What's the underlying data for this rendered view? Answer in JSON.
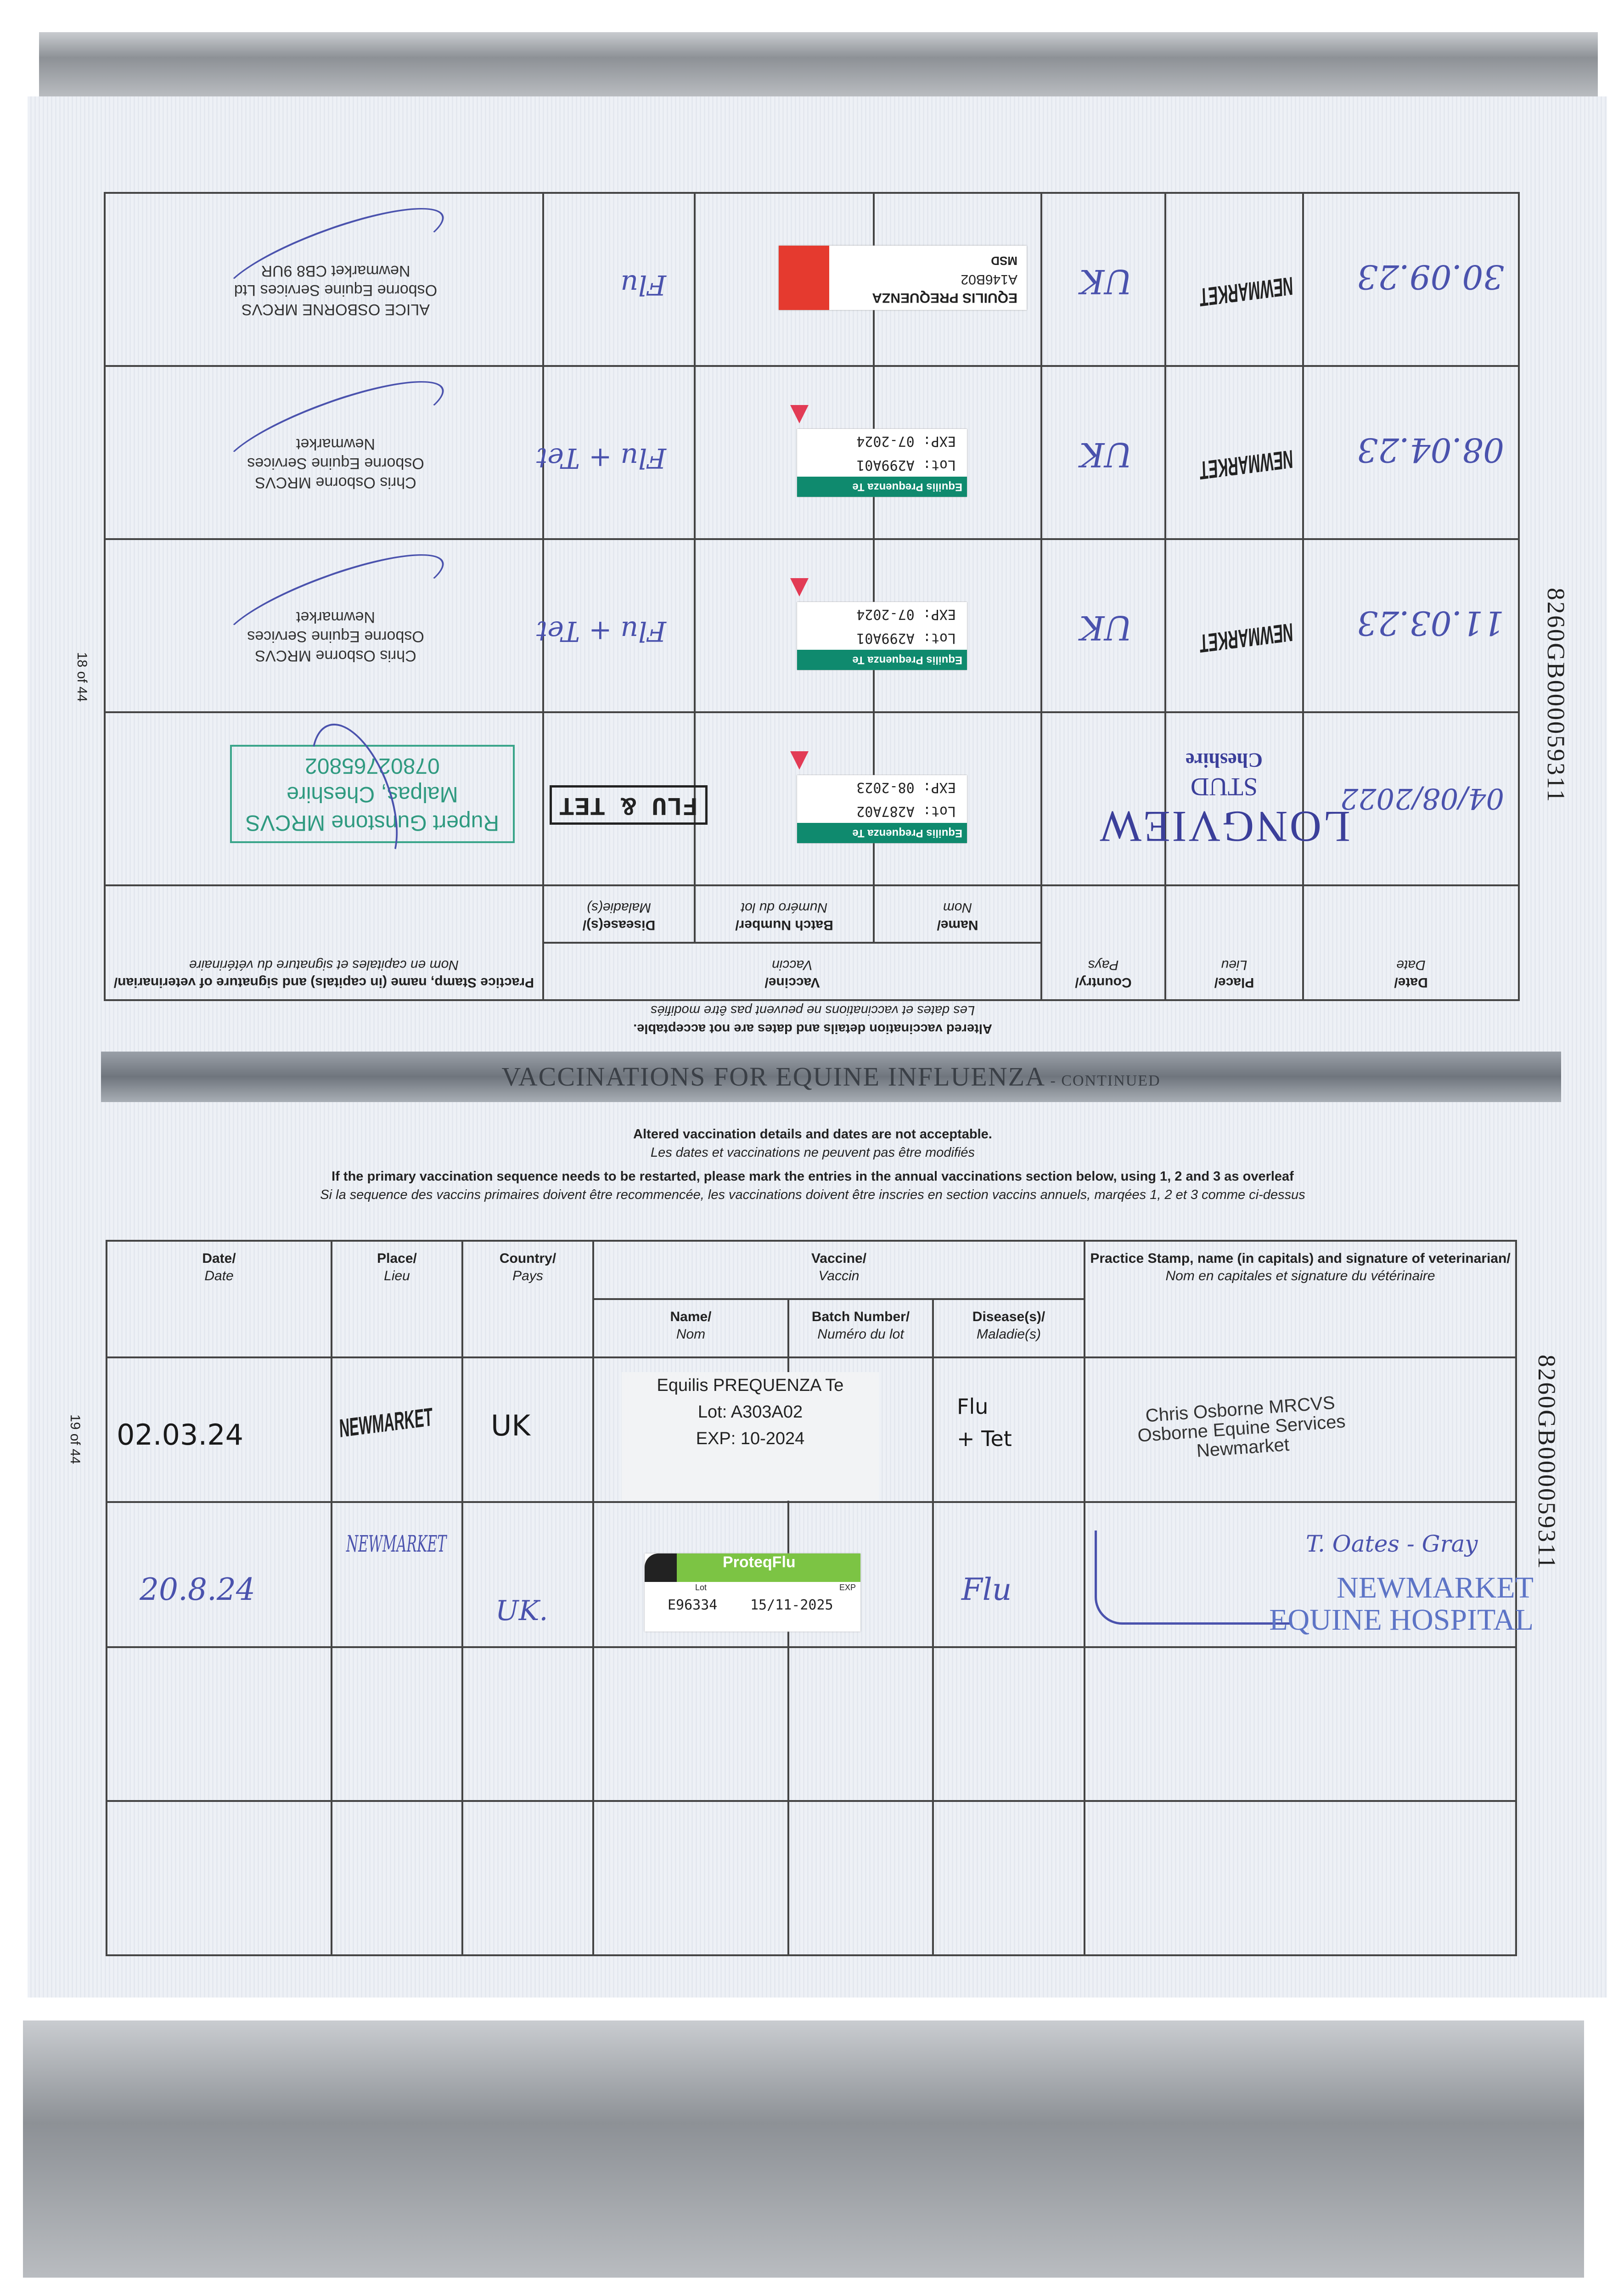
{
  "headers": {
    "date": "Date/",
    "date_fr": "Date",
    "place": "Place/",
    "place_fr": "Lieu",
    "country": "Country/",
    "country_fr": "Pays",
    "vaccine": "Vaccine/",
    "vaccine_fr": "Vaccin",
    "name": "Name/",
    "name_fr": "Nom",
    "batch": "Batch Number/",
    "batch_fr": "Numéro du lot",
    "disease": "Disease(s)/",
    "disease_fr": "Maladie(s)",
    "practice": "Practice Stamp, name (in capitals) and signature of veterinarian/",
    "practice_fr": "Nom en capitales et signature du vétérinaire"
  },
  "notice": {
    "altered": "Altered vaccination details and dates are not acceptable.",
    "altered_fr": "Les dates et vaccinations ne peuvent pas être modifiés",
    "restart": "If the primary vaccination sequence needs to be restarted, please mark the entries in the annual vaccinations section below, using 1, 2 and 3 as overleaf",
    "restart_fr": "Si la sequence des vaccins primaires doivent être recommencée, les vaccinations doivent être inscries en section vaccins annuels, marqées 1, 2 et 3 comme ci-dessus"
  },
  "upper_page": {
    "page_number": "18 of 44",
    "horse_id": "8260GB000059311",
    "rows": [
      {
        "date": "04/08/2022",
        "place_stamp": [
          "LONGVIEW",
          "STUD",
          "Cheshire"
        ],
        "label": {
          "band": "Equilis Prequenza Te",
          "lot": "Lot: A287A02",
          "exp": "EXP: 08-2023"
        },
        "disease_stamp": "FLU & TET",
        "practice_stamp": [
          "Rupert Gunstone MRCVS",
          "Malpas, Cheshire",
          "07802765802"
        ]
      },
      {
        "date": "11.03.23",
        "place": "NEWMARKET",
        "country": "UK",
        "label": {
          "band": "Equilis Prequenza Te",
          "lot": "Lot: A299A01",
          "exp": "EXP: 07-2024"
        },
        "disease": "Flu + Tet",
        "practice_stamp": [
          "Chris Osborne MRCVS",
          "Osborne Equine Services",
          "Newmarket"
        ]
      },
      {
        "date": "08.04.23",
        "place": "NEWMARKET",
        "country": "UK",
        "label": {
          "band": "Equilis Prequenza Te",
          "lot": "Lot: A299A01",
          "exp": "EXP: 07-2024"
        },
        "disease": "Flu + Tet",
        "practice_stamp": [
          "Chris Osborne MRCVS",
          "Osborne Equine Services",
          "Newmarket"
        ]
      },
      {
        "date": "30.09.23",
        "place": "NEWMARKET",
        "country": "UK",
        "msd_label": {
          "name": "EQUILIS PREQUENZA",
          "batch": "A146B02",
          "brand": "MSD"
        },
        "disease": "Flu",
        "practice_stamp": [
          "ALICE OSBORNE MRCVS",
          "Osborne Equine Services Ltd",
          "Newmarket CB8 9UR"
        ]
      }
    ]
  },
  "lower_page": {
    "title": "VACCINATIONS FOR EQUINE INFLUENZA",
    "title_suffix": " - CONTINUED",
    "page_number": "19 of 44",
    "horse_id": "8260GB000059311",
    "rows": [
      {
        "date": "02.03.24",
        "place": "NEWMARKET",
        "country": "UK",
        "vaccine_lines": [
          "Equilis PREQUENZA Te",
          "Lot: A303A02",
          "EXP: 10-2024"
        ],
        "disease": "Flu + Tet",
        "practice_stamp": [
          "Chris Osborne MRCVS",
          "Osborne Equine Services",
          "Newmarket"
        ]
      },
      {
        "date": "20.8.24",
        "place": "NEWMARKET",
        "country": "UK.",
        "proteq": {
          "brand": "ProteqFlu",
          "lot_label": "Lot",
          "exp_label": "EXP",
          "lot": "E96334",
          "exp": "15/11-2025"
        },
        "disease": "Flu",
        "practice_name": "T. Oates - Gray",
        "practice_stamp": [
          "NEWMARKET",
          "EQUINE HOSPITAL"
        ]
      },
      {},
      {}
    ]
  },
  "colors": {
    "ink_blue": "#4a52ad",
    "label_green": "#0f8a6e",
    "msd_red": "#e53a2f",
    "proteq_green": "#7cc444",
    "stamp_green": "#2f9a80"
  }
}
